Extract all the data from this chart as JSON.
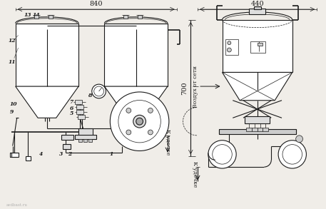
{
  "bg_color": "#f0ede8",
  "line_color": "#1a1a1a",
  "dim_840": "840",
  "dim_440": "440",
  "dim_700": "700",
  "label_vozdukh": "Воздух от сети",
  "label_udochke": "К удочке",
  "watermark": "avdbast.ru",
  "lw_main": 0.8,
  "lw_thin": 0.5,
  "lw_thick": 1.2
}
